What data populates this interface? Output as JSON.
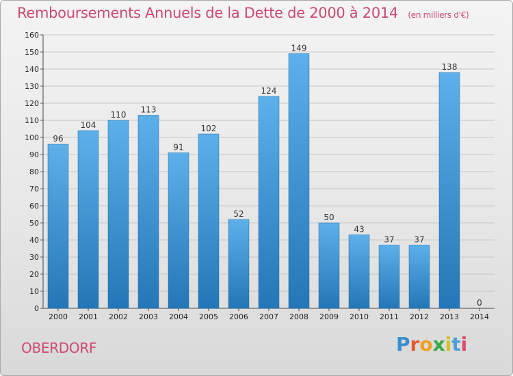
{
  "header": {
    "title": "Remboursements Annuels de la Dette de 2000 à 2014",
    "unit": "(en milliers d'€)"
  },
  "footer": {
    "commune": "OBERDORF",
    "logo": "Proxiti"
  },
  "colors": {
    "title": "#cc4a70",
    "bar_top": "#5aaee8",
    "bar_bottom": "#2478b8",
    "grid": "#c8c8c8"
  },
  "chart_data": {
    "type": "bar",
    "title": "Remboursements Annuels de la Dette de 2000 à 2014",
    "xlabel": "",
    "ylabel": "",
    "ylim": [
      0,
      160
    ],
    "ytick_step": 10,
    "grid": true,
    "categories": [
      "2000",
      "2001",
      "2002",
      "2003",
      "2004",
      "2005",
      "2006",
      "2007",
      "2008",
      "2009",
      "2010",
      "2011",
      "2012",
      "2013",
      "2014"
    ],
    "values": [
      96,
      104,
      110,
      113,
      91,
      102,
      52,
      124,
      149,
      50,
      43,
      37,
      37,
      138,
      0
    ]
  }
}
